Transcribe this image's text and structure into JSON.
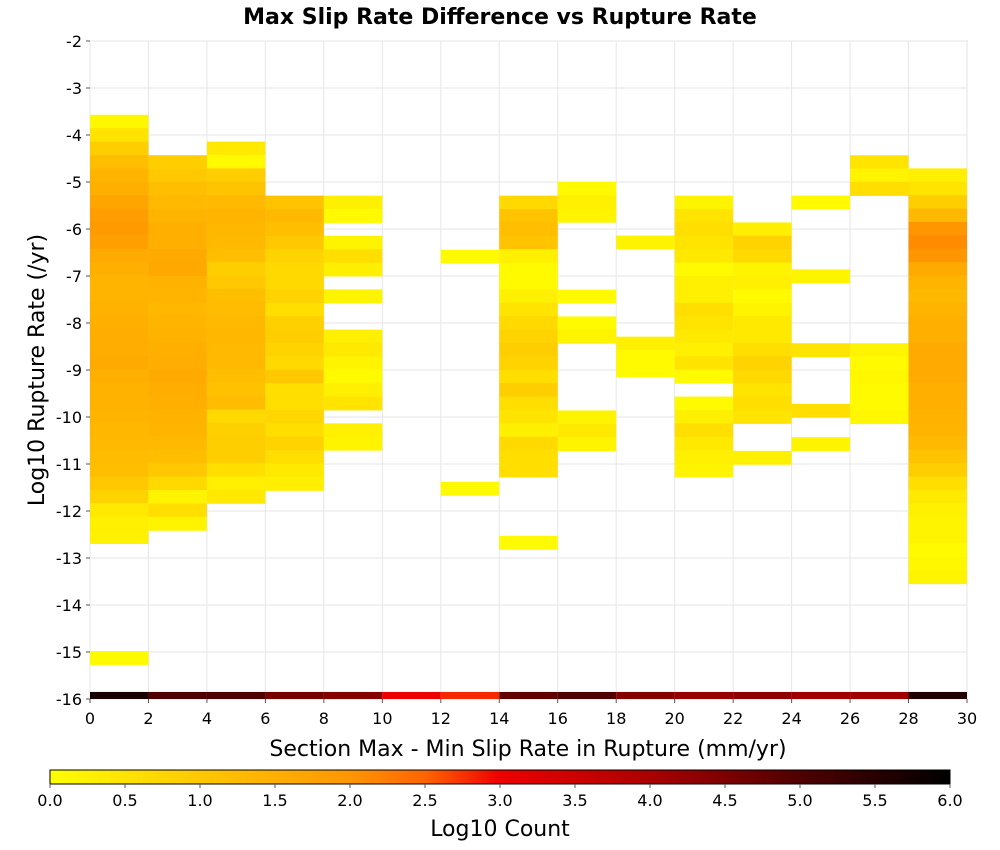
{
  "chart_data": {
    "type": "heatmap",
    "title": "Max Slip Rate Difference vs Rupture Rate",
    "xlabel": "Section Max - Min Slip Rate in Rupture (mm/yr)",
    "ylabel": "Log10 Rupture Rate (/yr)",
    "colorbar_label": "Log10 Count",
    "xlim": [
      0,
      30
    ],
    "ylim": [
      -16,
      -2
    ],
    "x_ticks": [
      "0",
      "2",
      "4",
      "6",
      "8",
      "10",
      "12",
      "14",
      "16",
      "18",
      "20",
      "22",
      "24",
      "26",
      "28",
      "30"
    ],
    "y_ticks": [
      "-2",
      "-3",
      "-4",
      "-5",
      "-6",
      "-7",
      "-8",
      "-9",
      "-10",
      "-11",
      "-12",
      "-13",
      "-14",
      "-15",
      "-16"
    ],
    "colorbar_ticks": [
      "0.0",
      "0.5",
      "1.0",
      "1.5",
      "2.0",
      "2.5",
      "3.0",
      "3.5",
      "4.0",
      "4.5",
      "5.0",
      "5.5",
      "6.0"
    ],
    "colorbar_range": [
      0,
      6
    ],
    "grid": true,
    "bin_width_x": 2,
    "bin_height_y": 0.285,
    "columns": [
      {
        "x0": 0,
        "y_top": -3.57,
        "values": [
          0.15,
          0.5,
          0.9,
          1.2,
          1.4,
          1.5,
          1.7,
          1.85,
          1.9,
          1.8,
          1.6,
          1.5,
          1.4,
          1.4,
          1.45,
          1.5,
          1.55,
          1.55,
          1.6,
          1.5,
          1.45,
          1.45,
          1.4,
          1.35,
          1.3,
          1.25,
          1.2,
          1.0,
          0.8,
          0.4,
          0.3,
          0.25
        ]
      },
      {
        "x0": 0,
        "y_top": -14.98,
        "values": [
          0.1
        ]
      },
      {
        "x0": 2,
        "y_top": -4.43,
        "values": [
          0.9,
          1.0,
          1.2,
          1.3,
          1.4,
          1.5,
          1.5,
          1.6,
          1.65,
          1.45,
          1.4,
          1.35,
          1.4,
          1.45,
          1.5,
          1.55,
          1.6,
          1.55,
          1.5,
          1.45,
          1.4,
          1.3,
          1.2,
          1.0,
          0.7,
          0.2,
          0.6,
          0.2
        ]
      },
      {
        "x0": 4,
        "y_top": -4.14,
        "values": [
          0.4,
          0.1,
          0.9,
          1.1,
          1.3,
          1.4,
          1.35,
          1.3,
          1.2,
          0.9,
          1.0,
          1.2,
          1.25,
          1.3,
          1.35,
          1.3,
          1.3,
          1.2,
          1.15,
          1.25,
          0.7,
          0.85,
          0.9,
          0.9,
          0.6,
          0.3,
          0.4
        ]
      },
      {
        "x0": 6,
        "y_top": -5.29,
        "values": [
          1.1,
          1.3,
          1.2,
          1.0,
          0.8,
          0.7,
          0.7,
          0.8,
          0.6,
          0.85,
          0.9,
          0.8,
          0.7,
          1.0,
          0.6,
          0.6,
          0.75,
          0.6,
          0.8,
          0.6,
          0.4,
          0.3
        ]
      },
      {
        "x0": 8,
        "y_top": -5.29,
        "values": [
          0.3,
          0.1,
          null,
          0.2,
          0.6,
          0.3,
          null,
          0.2,
          null,
          null,
          0.3,
          0.4,
          0.2,
          0.1,
          0.3,
          0.5,
          null,
          0.3,
          0.2
        ]
      },
      {
        "x0": 12,
        "y_top": -6.44,
        "values": [
          0.1
        ]
      },
      {
        "x0": 12,
        "y_top": -11.38,
        "values": [
          0.1
        ]
      },
      {
        "x0": 14,
        "y_top": -5.29,
        "values": [
          0.7,
          1.1,
          1.2,
          1.1,
          0.3,
          0.1,
          0.1,
          0.3,
          0.5,
          0.7,
          0.8,
          0.9,
          0.8,
          0.6,
          0.9,
          0.6,
          0.5,
          0.3,
          0.7,
          0.6,
          0.6
        ]
      },
      {
        "x0": 14,
        "y_top": -12.53,
        "values": [
          0.1
        ]
      },
      {
        "x0": 16,
        "y_top": -5.0,
        "values": [
          0.1,
          0.3,
          0.2
        ]
      },
      {
        "x0": 16,
        "y_top": -7.29,
        "values": [
          0.1
        ]
      },
      {
        "x0": 16,
        "y_top": -7.86,
        "values": [
          0.1,
          0.2
        ]
      },
      {
        "x0": 16,
        "y_top": -9.86,
        "values": [
          0.2
        ]
      },
      {
        "x0": 16,
        "y_top": -10.15,
        "values": [
          0.4,
          0.2
        ]
      },
      {
        "x0": 18,
        "y_top": -6.14,
        "values": [
          0.2
        ]
      },
      {
        "x0": 18,
        "y_top": -8.29,
        "values": [
          0.3,
          0.1,
          0.1
        ]
      },
      {
        "x0": 20,
        "y_top": -5.29,
        "values": [
          0.2,
          0.5,
          0.6,
          0.5,
          0.4,
          0.1,
          0.3,
          0.3,
          0.6,
          0.5,
          0.4,
          0.3,
          0.5,
          0.1,
          null,
          0.1,
          0.3,
          0.6,
          0.4,
          0.3,
          0.2
        ]
      },
      {
        "x0": 22,
        "y_top": -5.86,
        "values": [
          0.3,
          0.8,
          0.7,
          0.2,
          0.3,
          0.1,
          0.2,
          0.4,
          0.4,
          0.6,
          0.8,
          0.7,
          0.5,
          0.6,
          0.5
        ]
      },
      {
        "x0": 22,
        "y_top": -10.72,
        "values": [
          0.3
        ]
      },
      {
        "x0": 24,
        "y_top": -5.29,
        "values": [
          0.1
        ]
      },
      {
        "x0": 24,
        "y_top": -6.86,
        "values": [
          0.2
        ]
      },
      {
        "x0": 24,
        "y_top": -8.43,
        "values": [
          0.5
        ]
      },
      {
        "x0": 24,
        "y_top": -9.72,
        "values": [
          0.6
        ]
      },
      {
        "x0": 24,
        "y_top": -10.43,
        "values": [
          0.2
        ]
      },
      {
        "x0": 26,
        "y_top": -4.43,
        "values": [
          0.5,
          0.2,
          0.6
        ]
      },
      {
        "x0": 26,
        "y_top": -8.43,
        "values": [
          0.2,
          0.1,
          0.15,
          0.1,
          0.1,
          0.15
        ]
      },
      {
        "x0": 28,
        "y_top": -4.71,
        "values": [
          0.3,
          0.5,
          0.9,
          1.3,
          2.0,
          2.1,
          2.0,
          1.6,
          1.4,
          1.3,
          1.4,
          1.5,
          1.5,
          1.6,
          1.6,
          1.6,
          1.5,
          1.5,
          1.45,
          1.4,
          1.3,
          1.1,
          0.9,
          0.6,
          0.4,
          0.3,
          0.2,
          0.2,
          0.1,
          0.15,
          0.2
        ]
      }
    ],
    "marginal_row": {
      "y_top": -15.85,
      "y_bottom": -16.0,
      "values": [
        5.7,
        5.0,
        5.0,
        4.6,
        4.4,
        3.0,
        2.8,
        4.8,
        5.0,
        4.4,
        4.2,
        4.3,
        4.1,
        4.1,
        5.6
      ]
    }
  }
}
